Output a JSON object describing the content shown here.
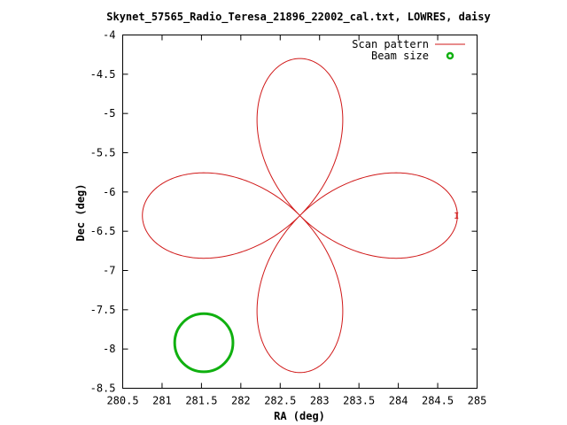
{
  "chart_data": {
    "type": "line",
    "title": "Skynet_57565_Radio_Teresa_21896_22002_cal.txt, LOWRES, daisy",
    "xlabel": "RA (deg)",
    "ylabel": "Dec (deg)",
    "xlim": [
      280.5,
      285
    ],
    "ylim": [
      -8.5,
      -4
    ],
    "x_ticks": [
      "280.5",
      "281",
      "281.5",
      "282",
      "282.5",
      "283",
      "283.5",
      "284",
      "284.5",
      "285"
    ],
    "y_ticks": [
      "-4",
      "-4.5",
      "-5",
      "-5.5",
      "-6",
      "-6.5",
      "-7",
      "-7.5",
      "-8",
      "-8.5"
    ],
    "grid": false,
    "legend_position": "top-right",
    "series": [
      {
        "name": "Scan pattern",
        "kind": "line",
        "color": "#d01818",
        "pattern": "daisy",
        "petals": 4,
        "center": [
          282.75,
          -6.3
        ],
        "petal_extent_deg": 2.0,
        "petal_tips": [
          [
            282.75,
            -4.28
          ],
          [
            284.77,
            -6.3
          ],
          [
            282.75,
            -8.27
          ],
          [
            280.74,
            -6.3
          ]
        ]
      },
      {
        "name": "Beam size",
        "kind": "circle",
        "color": "#10b010",
        "center": [
          281.53,
          -7.92
        ],
        "radius_deg": 0.37
      }
    ]
  }
}
